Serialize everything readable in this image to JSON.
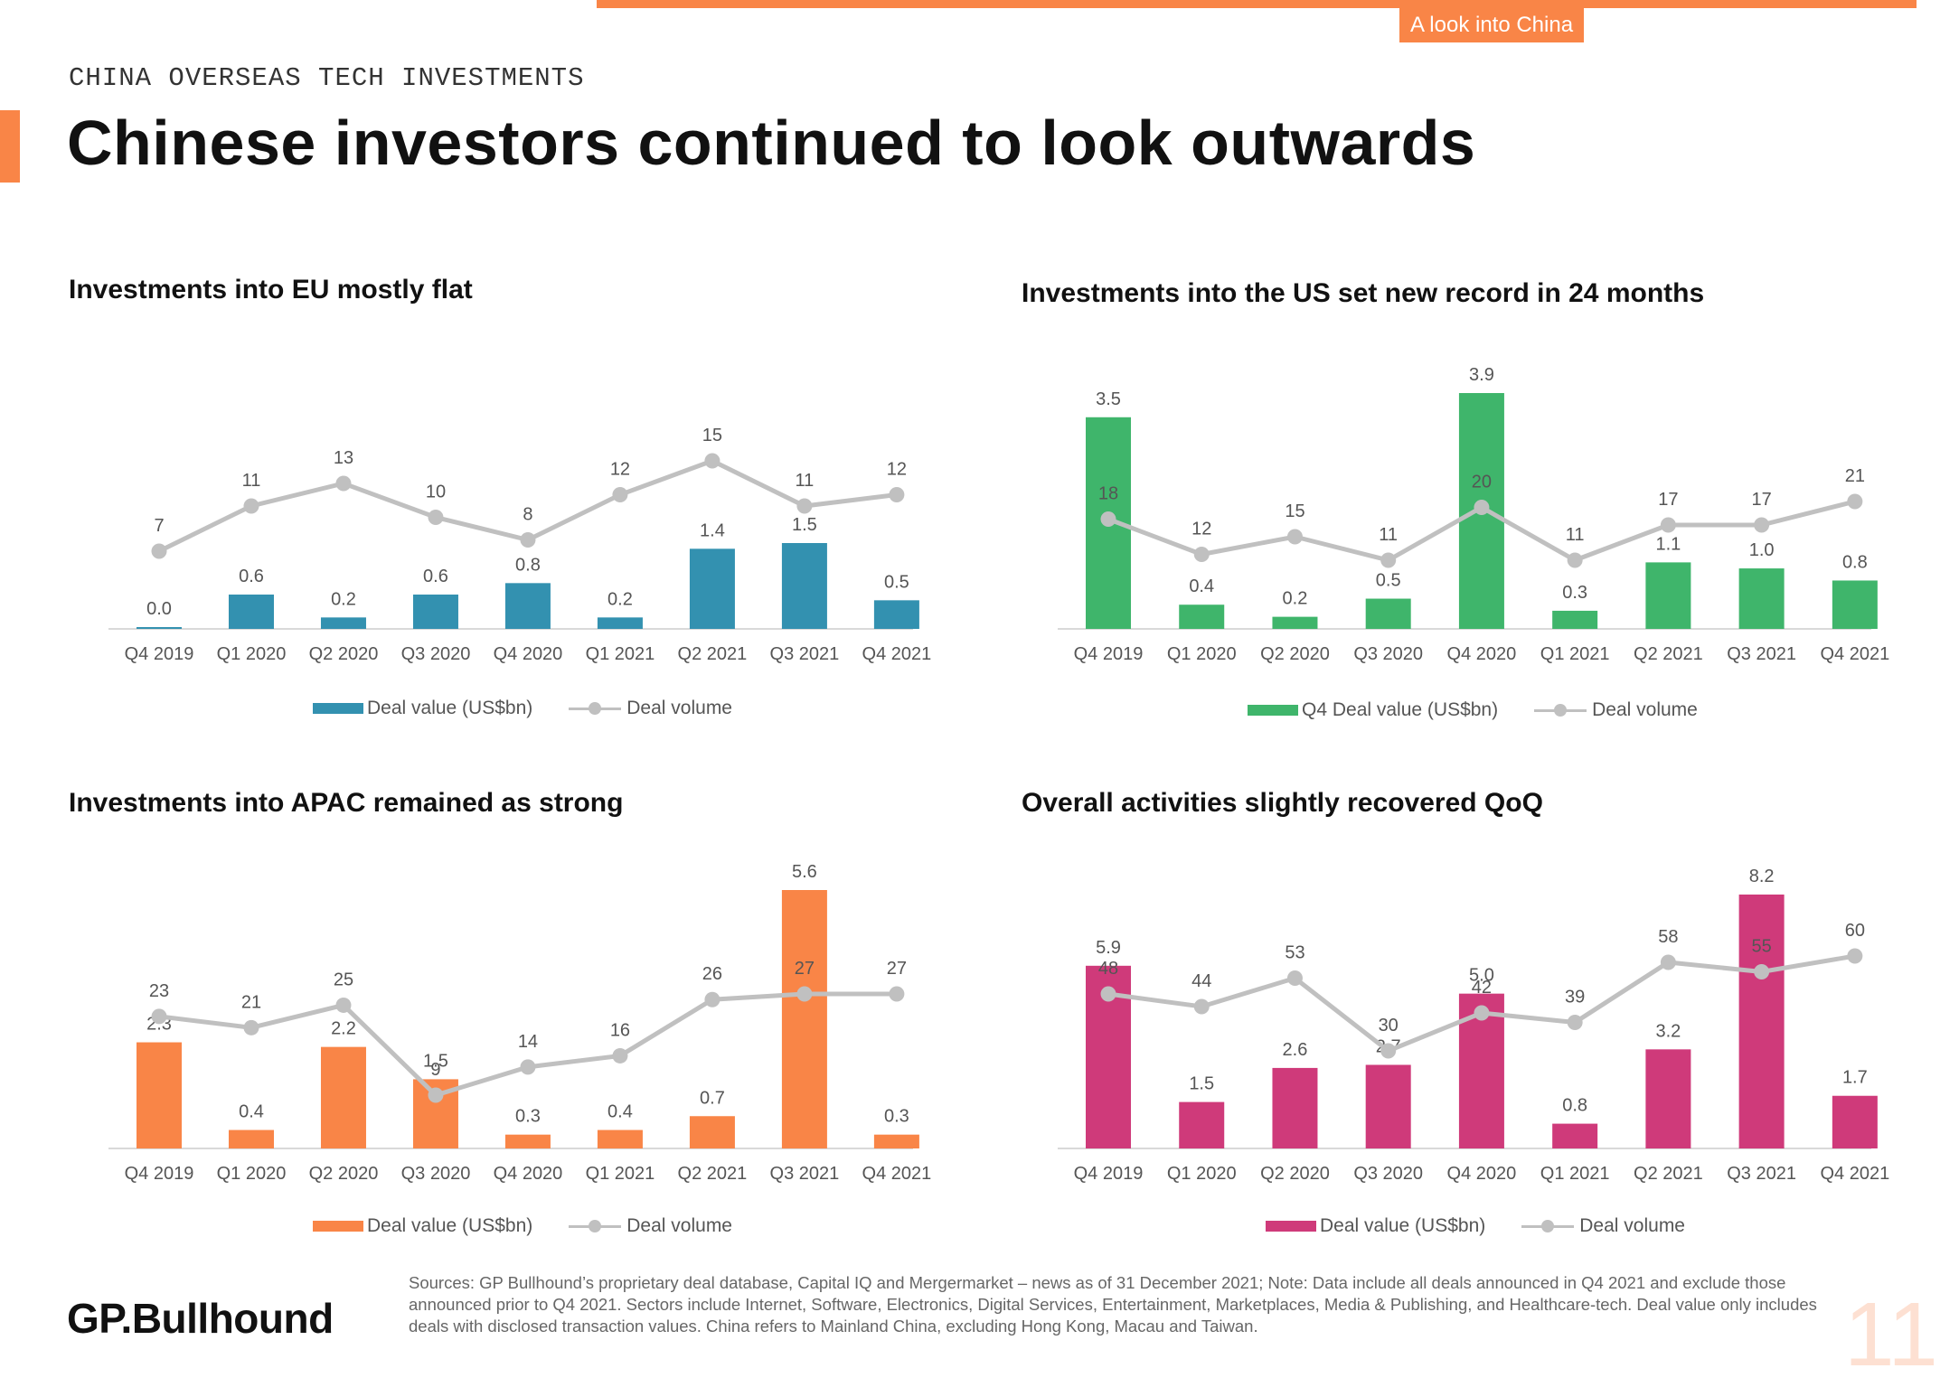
{
  "colors": {
    "accent": "#f98547",
    "eu": "#3391b0",
    "us": "#3fb56b",
    "apac": "#f98547",
    "overall": "#cf3a7a",
    "line": "#c0c0c0"
  },
  "header": {
    "tag": "A look into China",
    "section_label": "CHINA OVERSEAS TECH INVESTMENTS",
    "title": "Chinese investors continued to look outwards"
  },
  "chart_data": [
    {
      "type": "bar",
      "title": "Investments into EU mostly flat",
      "categories": [
        "Q4 2019",
        "Q1 2020",
        "Q2 2020",
        "Q3 2020",
        "Q4 2020",
        "Q1 2021",
        "Q2 2021",
        "Q3 2021",
        "Q4 2021"
      ],
      "series": [
        {
          "name": "Deal value (US$bn)",
          "kind": "bar",
          "values": [
            0.0,
            0.6,
            0.2,
            0.6,
            0.8,
            0.2,
            1.4,
            1.5,
            0.5
          ]
        },
        {
          "name": "Deal volume",
          "kind": "line",
          "values": [
            7,
            11,
            13,
            10,
            8,
            12,
            15,
            11,
            12
          ]
        }
      ]
    },
    {
      "type": "bar",
      "title": "Investments into the US set new record in 24 months",
      "categories": [
        "Q4 2019",
        "Q1 2020",
        "Q2 2020",
        "Q3 2020",
        "Q4 2020",
        "Q1 2021",
        "Q2 2021",
        "Q3 2021",
        "Q4 2021"
      ],
      "series": [
        {
          "name": "Q4 Deal value (US$bn)",
          "kind": "bar",
          "values": [
            3.5,
            0.4,
            0.2,
            0.5,
            3.9,
            0.3,
            1.1,
            1.0,
            0.8
          ]
        },
        {
          "name": "Deal volume",
          "kind": "line",
          "values": [
            18,
            12,
            15,
            11,
            20,
            11,
            17,
            17,
            21
          ]
        }
      ]
    },
    {
      "type": "bar",
      "title": "Investments into APAC remained as strong",
      "categories": [
        "Q4 2019",
        "Q1 2020",
        "Q2 2020",
        "Q3 2020",
        "Q4 2020",
        "Q1 2021",
        "Q2 2021",
        "Q3 2021",
        "Q4 2021"
      ],
      "series": [
        {
          "name": "Deal value (US$bn)",
          "kind": "bar",
          "values": [
            2.3,
            0.4,
            2.2,
            1.5,
            0.3,
            0.4,
            0.7,
            5.6,
            0.3
          ]
        },
        {
          "name": "Deal volume",
          "kind": "line",
          "values": [
            23,
            21,
            25,
            9,
            14,
            16,
            26,
            27,
            27
          ]
        }
      ]
    },
    {
      "type": "bar",
      "title": "Overall activities slightly recovered QoQ",
      "categories": [
        "Q4 2019",
        "Q1 2020",
        "Q2 2020",
        "Q3 2020",
        "Q4 2020",
        "Q1 2021",
        "Q2 2021",
        "Q3 2021",
        "Q4 2021"
      ],
      "series": [
        {
          "name": "Deal value (US$bn)",
          "kind": "bar",
          "values": [
            5.9,
            1.5,
            2.6,
            2.7,
            5.0,
            0.8,
            3.2,
            8.2,
            1.7
          ]
        },
        {
          "name": "Deal volume",
          "kind": "line",
          "values": [
            48,
            44,
            53,
            30,
            42,
            39,
            58,
            55,
            60
          ]
        }
      ]
    }
  ],
  "footer": {
    "logo": "GP.Bullhound",
    "sources": "Sources: GP Bullhound’s proprietary deal database, Capital IQ and Mergermarket – news as of 31 December 2021; Note: Data include all deals announced in Q4 2021 and exclude those announced prior to Q4 2021. Sectors include Internet, Software, Electronics, Digital Services, Entertainment, Marketplaces, Media & Publishing, and Healthcare-tech. Deal value only includes deals with disclosed transaction values. China refers to Mainland China, excluding Hong Kong, Macau and Taiwan.",
    "page_number": "11"
  }
}
